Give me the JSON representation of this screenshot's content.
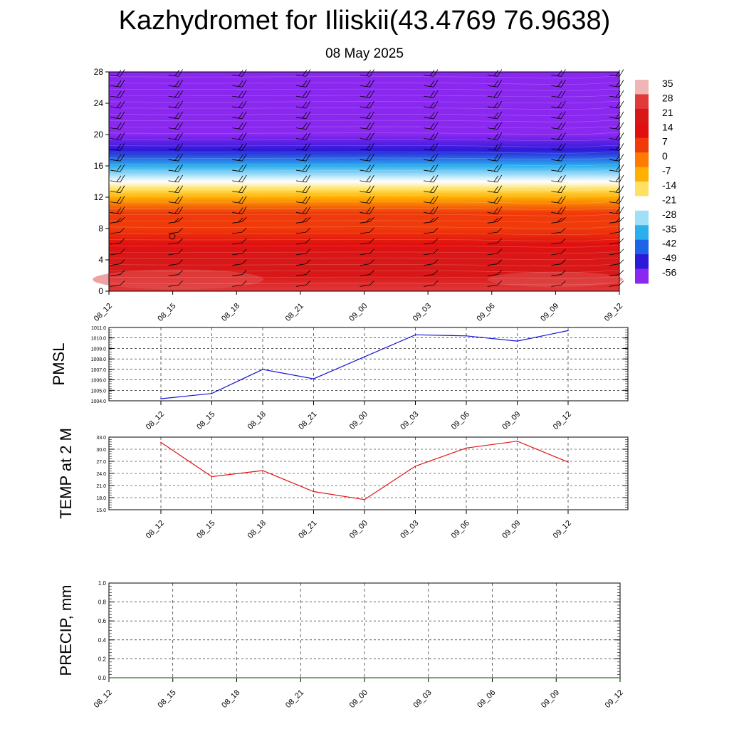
{
  "title": "Kazhydromet for Iliiskii(43.4769 76.9638)",
  "subtitle": "08 May 2025",
  "chart_data": [
    {
      "type": "heatmap",
      "description_of_fields": "temperature cross-section with wind barbs",
      "x_ticks": [
        "08_12",
        "08_15",
        "08_18",
        "08_21",
        "09_00",
        "09_03",
        "09_06",
        "09_09",
        "09_12"
      ],
      "y_ticks": [
        0,
        4,
        8,
        12,
        16,
        20,
        24,
        28
      ],
      "ylim": [
        0,
        28
      ],
      "colorbar_labels": [
        35,
        28,
        21,
        14,
        7,
        0,
        -7,
        -14,
        -21,
        -28,
        -35,
        -42,
        -49,
        -56
      ],
      "colorbar_colors": [
        "#f0b6b6",
        "#e23a3a",
        "#d81818",
        "#e01010",
        "#f03a0a",
        "#ff7a00",
        "#ffb000",
        "#ffe060",
        "#ffffff",
        "#9fe0f7",
        "#2bb0ee",
        "#1c64e8",
        "#2b1ad8",
        "#8a28f0"
      ],
      "temperature_profile": [
        {
          "h": 0,
          "t": 31
        },
        {
          "h": 2,
          "t": 28
        },
        {
          "h": 4,
          "t": 24
        },
        {
          "h": 6,
          "t": 20
        },
        {
          "h": 8,
          "t": 14
        },
        {
          "h": 10,
          "t": 8
        },
        {
          "h": 12,
          "t": 0
        },
        {
          "h": 13,
          "t": -8
        },
        {
          "h": 14,
          "t": -18
        },
        {
          "h": 16,
          "t": -30
        },
        {
          "h": 18,
          "t": -42
        },
        {
          "h": 20,
          "t": -55
        },
        {
          "h": 22,
          "t": -62
        },
        {
          "h": 24,
          "t": -66
        },
        {
          "h": 28,
          "t": -70
        }
      ]
    },
    {
      "type": "line",
      "ylabel": "PMSL",
      "x": [
        "08_12",
        "08_15",
        "08_18",
        "08_21",
        "09_00",
        "09_03",
        "09_06",
        "09_09",
        "09_12"
      ],
      "values": [
        1004.2,
        1004.7,
        1007.0,
        1006.1,
        1008.2,
        1010.3,
        1010.2,
        1009.7,
        1010.7
      ],
      "ylim": [
        1004.0,
        1011.0
      ],
      "y_ticks": [
        "1004.0",
        "1005.0",
        "1006.0",
        "1007.0",
        "1008.0",
        "1009.0",
        "1010.0",
        "1011.0"
      ],
      "color": "#1515d8"
    },
    {
      "type": "line",
      "ylabel": "TEMP at 2 M",
      "x": [
        "08_12",
        "08_15",
        "08_18",
        "08_21",
        "09_00",
        "09_03",
        "09_06",
        "09_09",
        "09_12"
      ],
      "values": [
        31.7,
        23.2,
        24.7,
        19.5,
        17.5,
        25.8,
        30.3,
        32.0,
        26.8
      ],
      "ylim": [
        15.0,
        33.0
      ],
      "y_ticks": [
        "15.0",
        "18.0",
        "21.0",
        "24.0",
        "27.0",
        "30.0",
        "33.0"
      ],
      "color": "#e31515"
    },
    {
      "type": "line",
      "ylabel": "PRECIP, mm",
      "x": [
        "08_12",
        "08_15",
        "08_18",
        "08_21",
        "09_00",
        "09_03",
        "09_06",
        "09_09",
        "09_12"
      ],
      "values": [
        0,
        0,
        0,
        0,
        0,
        0,
        0,
        0,
        0
      ],
      "ylim": [
        0,
        1.0
      ],
      "y_ticks": [
        "0.0",
        "0.2",
        "0.4",
        "0.6",
        "0.8",
        "1.0"
      ],
      "color": "#1a7a1a"
    }
  ]
}
